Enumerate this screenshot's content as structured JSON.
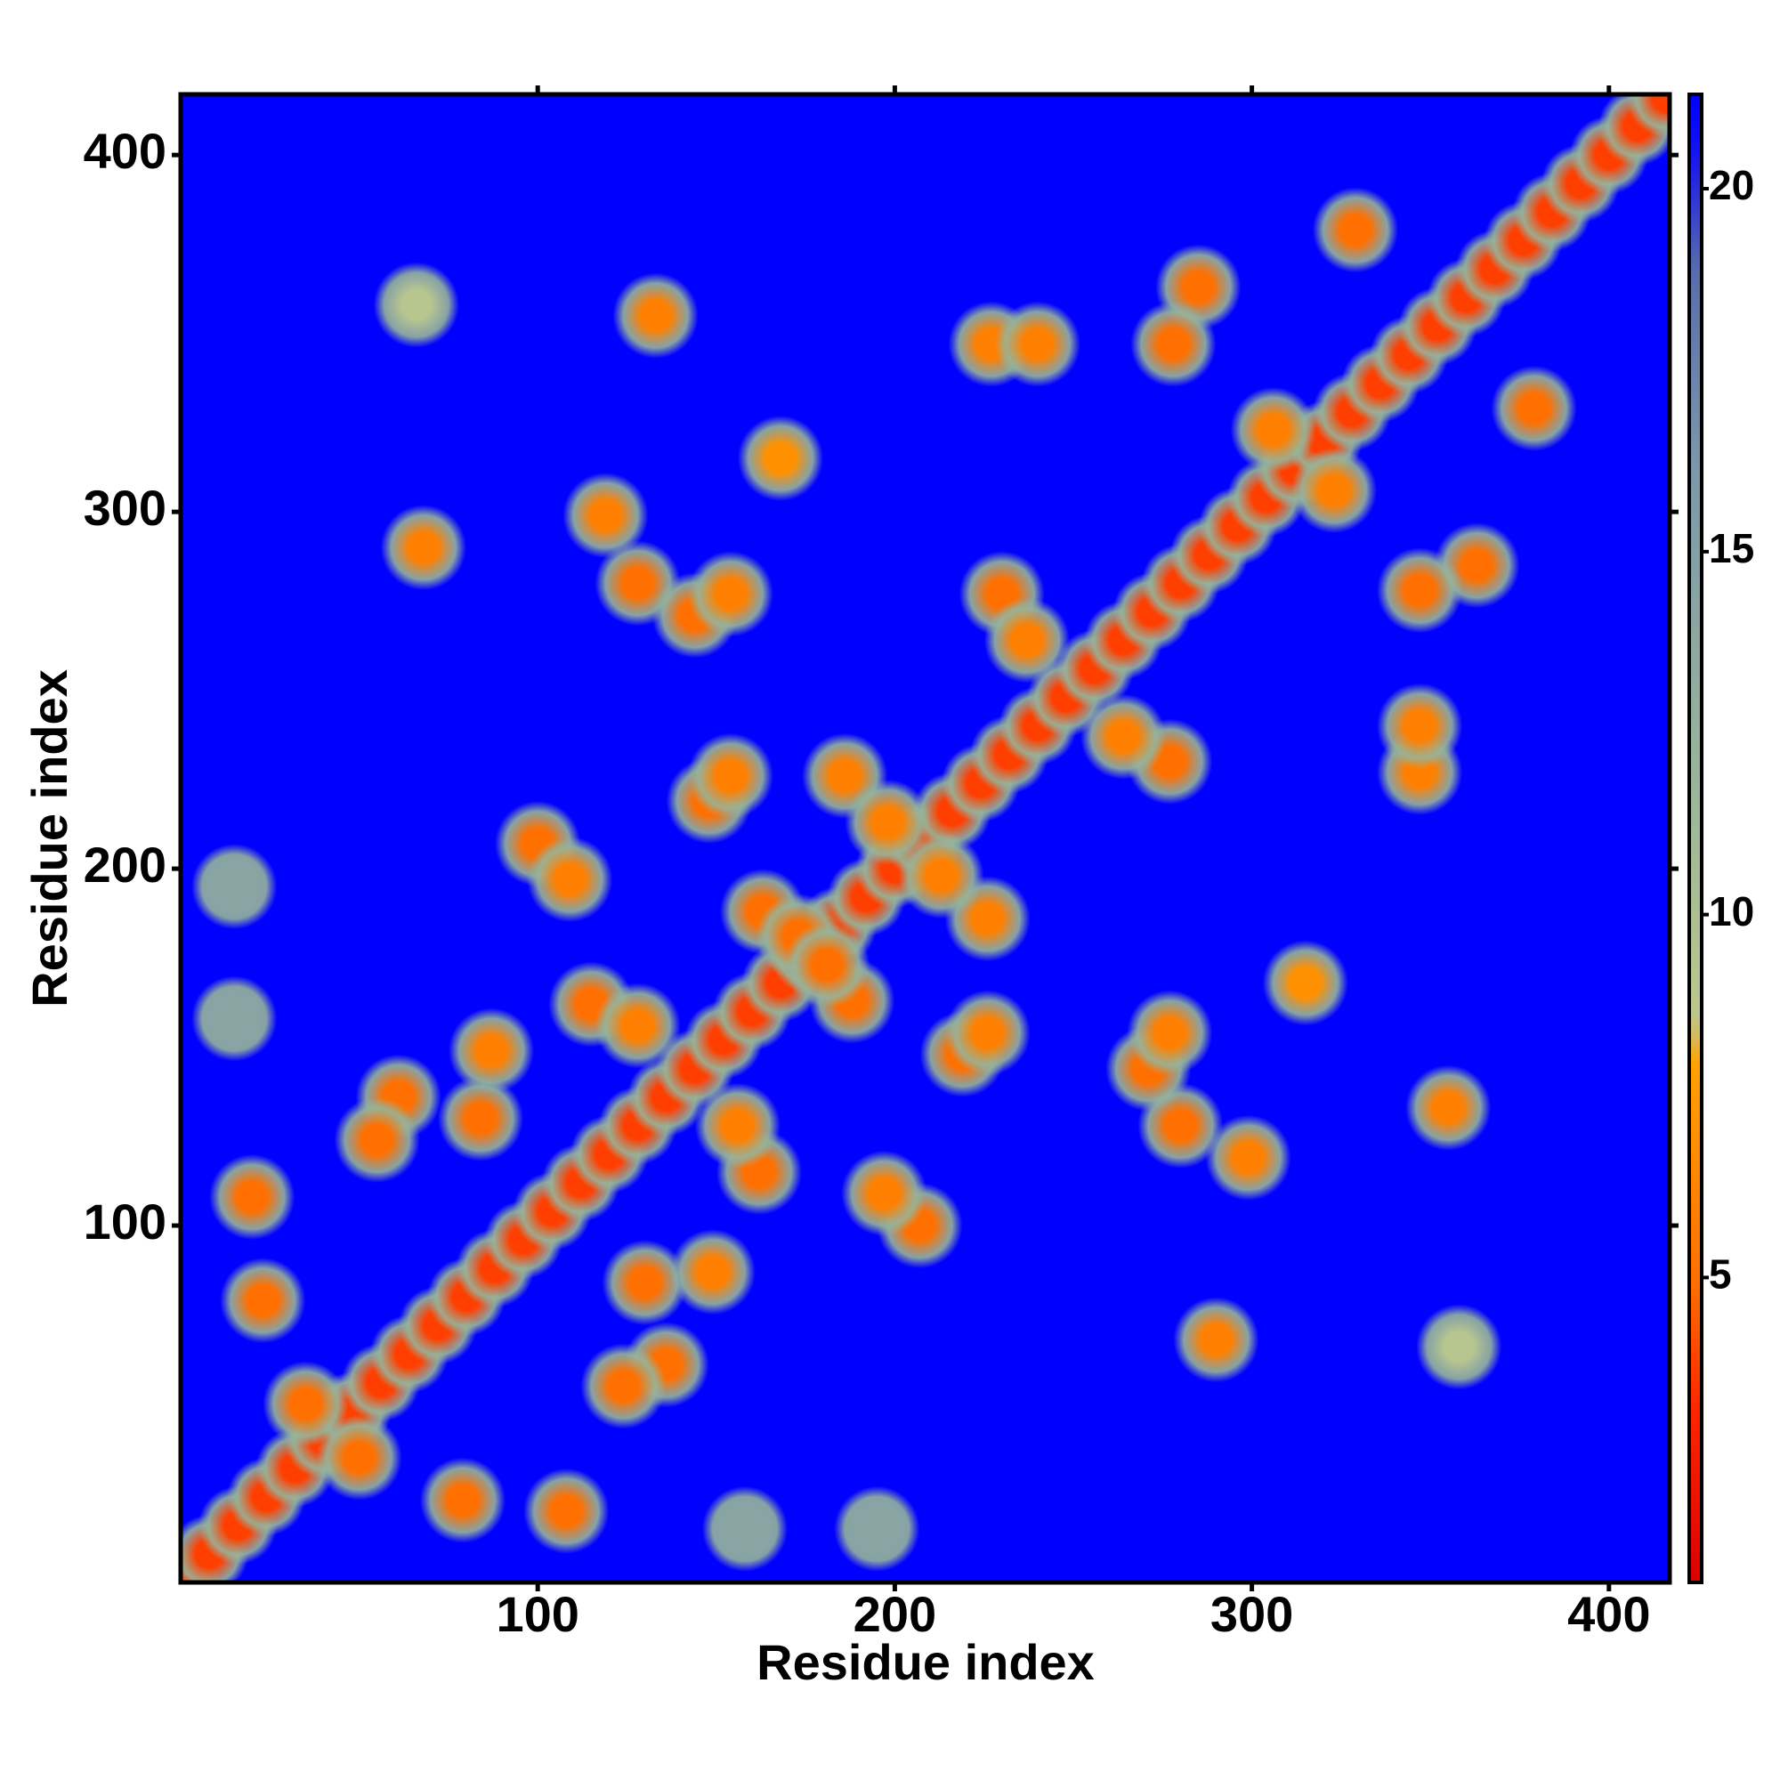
{
  "chart_data": {
    "type": "heatmap",
    "xlabel": "Residue index",
    "ylabel": "Residue index",
    "xlim": [
      0,
      417
    ],
    "ylim": [
      0,
      417
    ],
    "xticks": [
      100,
      200,
      300,
      400
    ],
    "yticks": [
      100,
      200,
      300,
      400
    ],
    "clim": [
      0.8,
      21.3
    ],
    "cticks": [
      5,
      10,
      15,
      20
    ],
    "symmetric": true,
    "x": [
      66,
      133,
      168,
      68,
      119,
      128,
      144,
      154,
      100,
      109,
      20,
      23,
      61,
      84,
      87,
      115,
      128,
      148,
      154,
      163,
      173,
      186,
      198,
      230,
      237,
      227,
      240,
      285,
      278,
      329,
      306,
      15,
      15,
      35,
      55
    ],
    "y": [
      358,
      355,
      315,
      290,
      299,
      280,
      271,
      277,
      207,
      197,
      108,
      79,
      136,
      130,
      149,
      162,
      156,
      219,
      226,
      188,
      181,
      226,
      213,
      277,
      264,
      347,
      347,
      363,
      347,
      379,
      323,
      195,
      158,
      50,
      124
    ],
    "values": [
      9,
      6,
      7,
      6,
      6,
      5,
      5,
      6,
      5,
      6,
      5,
      5,
      5,
      5,
      6,
      5,
      6,
      5,
      6,
      5,
      5,
      6,
      6,
      5,
      6,
      6,
      6,
      5,
      5,
      5,
      6,
      14,
      14,
      5,
      5
    ],
    "diagonal": {
      "x": [
        0,
        8,
        16,
        24,
        32,
        40,
        48,
        56,
        64,
        72,
        80,
        88,
        96,
        104,
        112,
        120,
        128,
        136,
        144,
        152,
        160,
        168,
        176,
        184,
        192,
        200,
        208,
        216,
        224,
        232,
        240,
        248,
        256,
        264,
        272,
        280,
        288,
        296,
        304,
        312,
        320,
        328,
        336,
        344,
        352,
        360,
        368,
        376,
        384,
        392,
        400,
        408,
        416
      ],
      "values": [
        3.8,
        3.8,
        3.8,
        3.8,
        3.8,
        3.8,
        3.8,
        3.8,
        3.8,
        3.8,
        3.8,
        3.8,
        3.8,
        3.8,
        3.8,
        3.8,
        3.8,
        3.8,
        3.8,
        3.8,
        3.8,
        3.8,
        3.8,
        3.8,
        3.8,
        3.8,
        3.8,
        3.8,
        3.8,
        3.8,
        3.8,
        3.8,
        3.8,
        3.8,
        3.8,
        3.8,
        3.8,
        3.8,
        3.8,
        3.8,
        3.8,
        3.8,
        3.8,
        3.8,
        3.8,
        3.8,
        3.8,
        3.8,
        3.8,
        3.8,
        3.8,
        3.8,
        3.8
      ]
    }
  }
}
